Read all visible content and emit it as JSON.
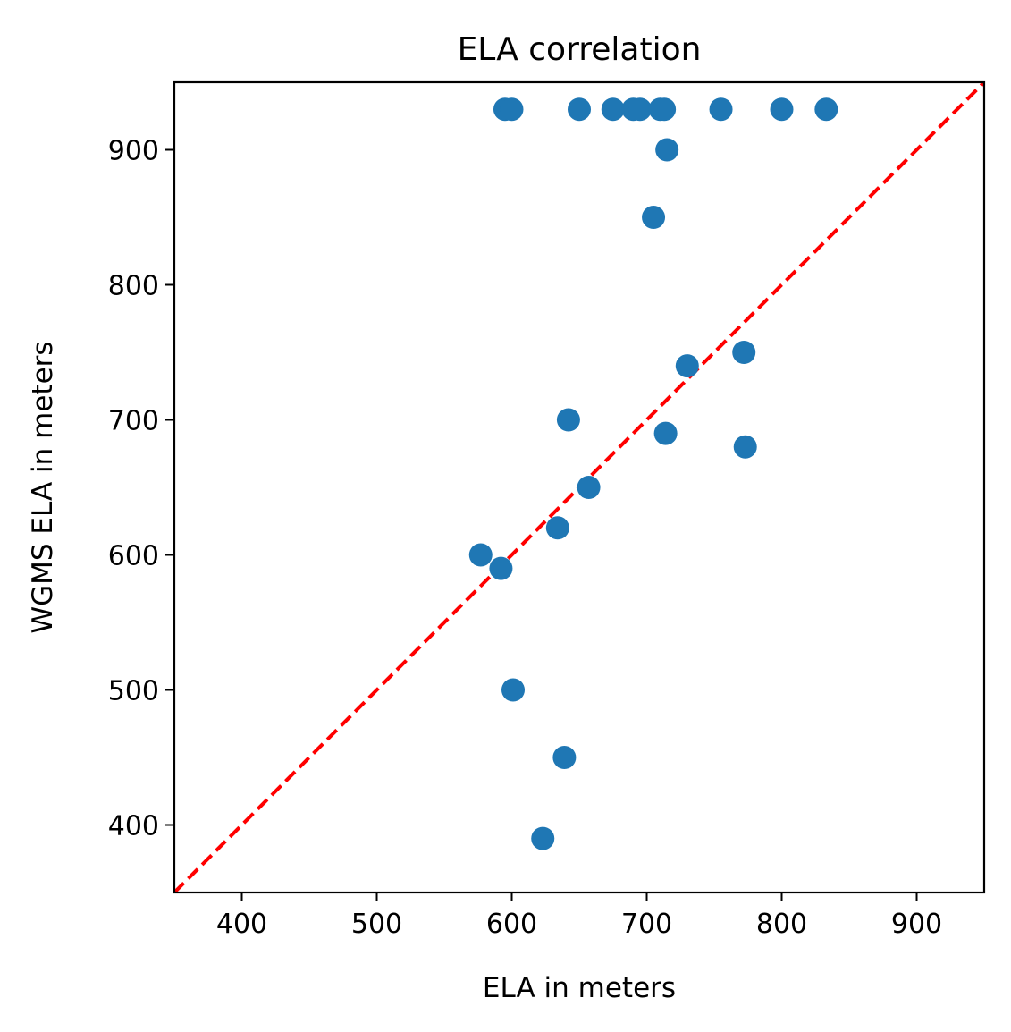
{
  "chart_data": {
    "type": "scatter",
    "title": "ELA correlation",
    "xlabel": "ELA in meters",
    "ylabel": "WGMS ELA in meters",
    "xlim": [
      350,
      950
    ],
    "ylim": [
      350,
      950
    ],
    "xticks": [
      400,
      500,
      600,
      700,
      800,
      900
    ],
    "yticks": [
      400,
      500,
      600,
      700,
      800,
      900
    ],
    "grid": false,
    "colors": {
      "points": "#1f77b4",
      "reference_line": "#ff0000"
    },
    "reference_line": {
      "style": "dashed",
      "from": [
        350,
        350
      ],
      "to": [
        950,
        950
      ]
    },
    "series": [
      {
        "points": [
          [
            595,
            930
          ],
          [
            600,
            930
          ],
          [
            650,
            930
          ],
          [
            675,
            930
          ],
          [
            690,
            930
          ],
          [
            695,
            930
          ],
          [
            710,
            930
          ],
          [
            713,
            930
          ],
          [
            755,
            930
          ],
          [
            800,
            930
          ],
          [
            833,
            930
          ],
          [
            715,
            900
          ],
          [
            705,
            850
          ],
          [
            772,
            750
          ],
          [
            730,
            740
          ],
          [
            642,
            700
          ],
          [
            714,
            690
          ],
          [
            773,
            680
          ],
          [
            657,
            650
          ],
          [
            634,
            620
          ],
          [
            577,
            600
          ],
          [
            592,
            590
          ],
          [
            601,
            500
          ],
          [
            639,
            450
          ],
          [
            623,
            390
          ]
        ]
      }
    ]
  }
}
